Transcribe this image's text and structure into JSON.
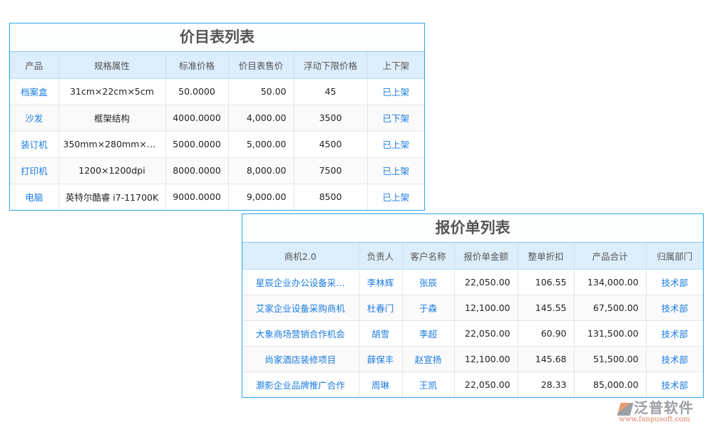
{
  "price_list": {
    "title": "价目表列表",
    "headers": [
      "产品",
      "规格属性",
      "标准价格",
      "价目表售价",
      "浮动下限价格",
      "上下架"
    ],
    "rows": [
      [
        "档案盒",
        "31cm×22cm×5cm",
        "50.0000",
        "50.00",
        "45",
        "已上架"
      ],
      [
        "沙发",
        "框架结构",
        "4000.0000",
        "4,000.00",
        "3500",
        "已下架"
      ],
      [
        "装订机",
        "350mm×280mm×5…",
        "5000.0000",
        "5,000.00",
        "4500",
        "已上架"
      ],
      [
        "打印机",
        "1200×1200dpi",
        "8000.0000",
        "8,000.00",
        "7500",
        "已上架"
      ],
      [
        "电脑",
        "英特尔酷睿 i7-11700K",
        "9000.0000",
        "9,000.00",
        "8500",
        "已上架"
      ]
    ]
  },
  "quote_list": {
    "title": "报价单列表",
    "headers": [
      "商机2.0",
      "负责人",
      "客户名称",
      "报价单金额",
      "整单折扣",
      "产品合计",
      "归属部门"
    ],
    "rows": [
      [
        "星辰企业办公设备采…",
        "李林辉",
        "张辰",
        "22,050.00",
        "106.55",
        "134,000.00",
        "技术部"
      ],
      [
        "艾家企业设备采购商机",
        "杜春门",
        "于森",
        "12,100.00",
        "145.55",
        "67,500.00",
        "技术部"
      ],
      [
        "大象商场营销合作机会",
        "胡雪",
        "李超",
        "22,050.00",
        "60.90",
        "131,500.00",
        "技术部"
      ],
      [
        "尚家酒店装修项目",
        "薛保丰",
        "赵宣扬",
        "12,100.00",
        "145.68",
        "51,500.00",
        "技术部"
      ],
      [
        "灏影企业品牌推广合作",
        "周琳",
        "王凯",
        "22,050.00",
        "28.33",
        "85,000.00",
        "技术部"
      ]
    ]
  },
  "watermark": {
    "logo": "泛普软件",
    "url": "www.fanpusoft.com"
  }
}
